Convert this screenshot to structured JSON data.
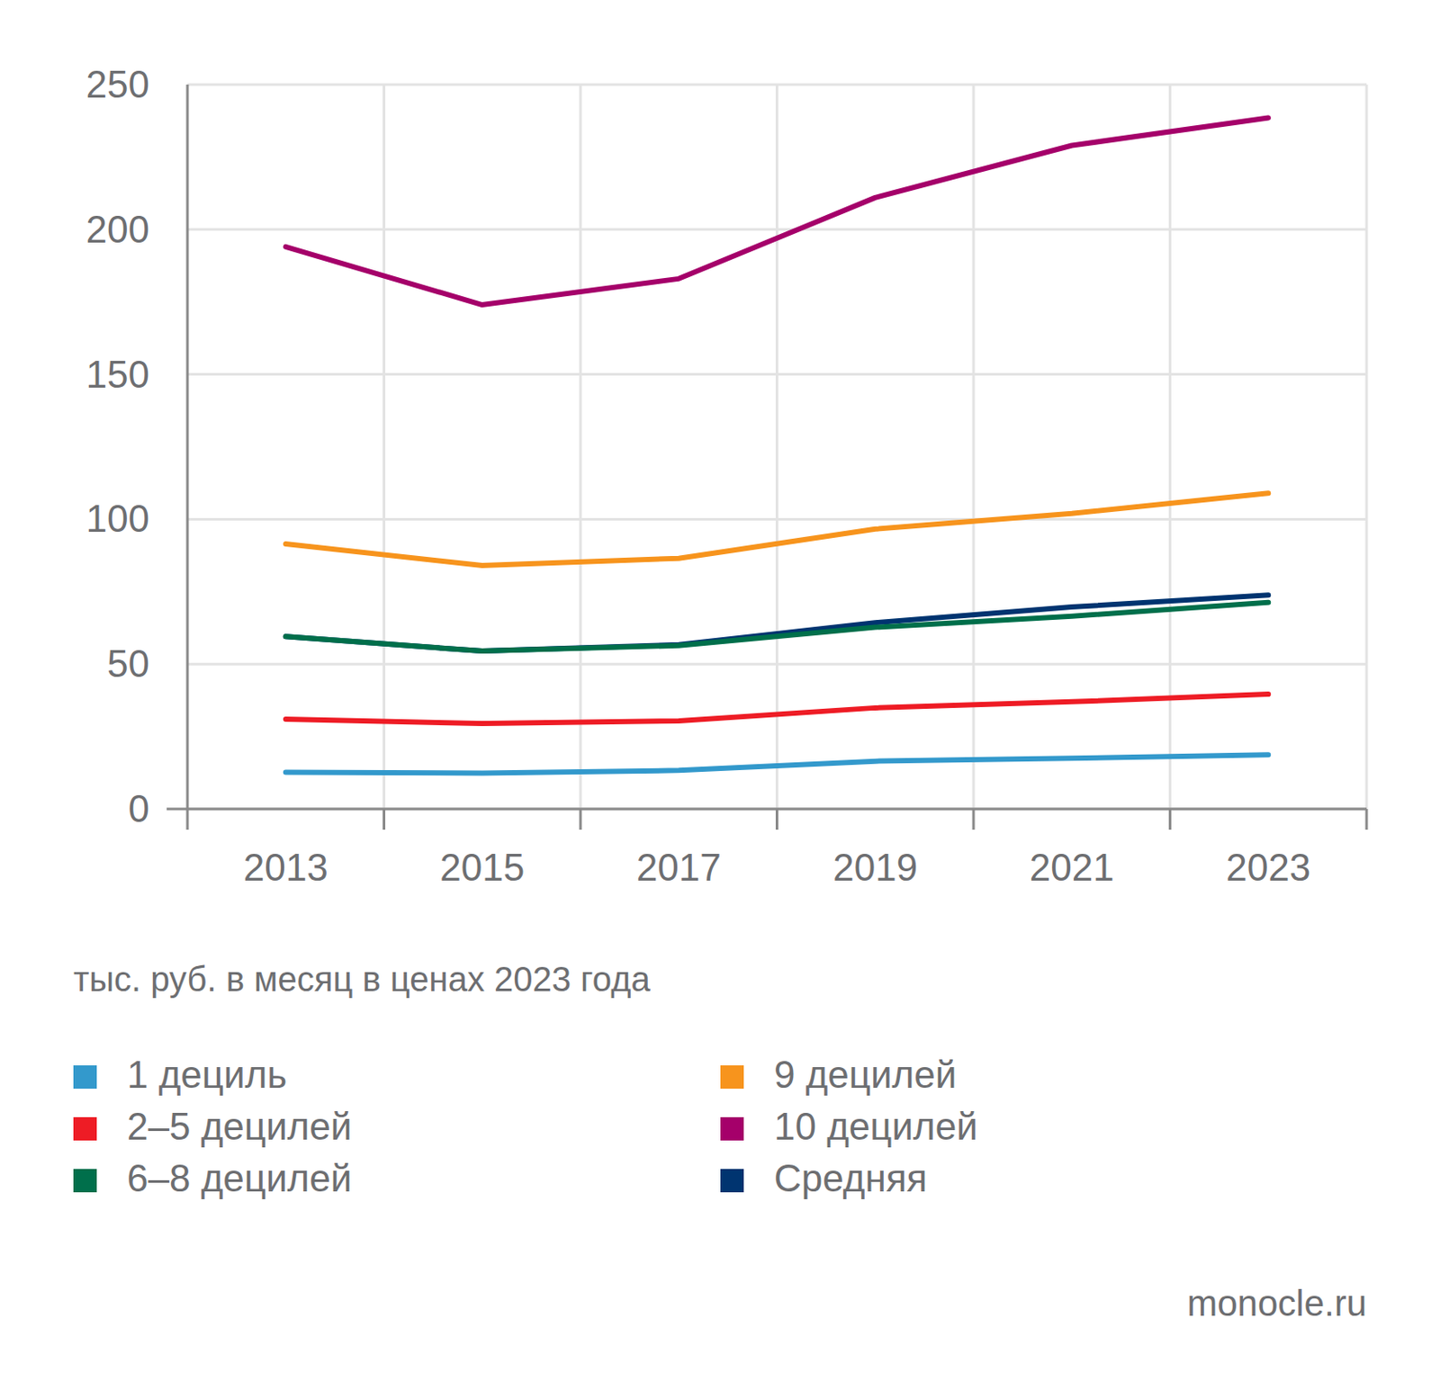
{
  "chart_data": {
    "type": "line",
    "y_label": "тыс. руб. в месяц в ценах 2023 года",
    "annotations": [
      "monocle.ru"
    ],
    "categories": [
      "2013",
      "2015",
      "2017",
      "2019",
      "2021",
      "2023"
    ],
    "ylim": [
      0,
      250
    ],
    "yticks": [
      0,
      50,
      100,
      150,
      200,
      250
    ],
    "grid": true,
    "legend": "bottom",
    "series": [
      {
        "name": "1 дециль",
        "color": "#3399cc",
        "values": [
          12.7,
          12.4,
          13.3,
          16.5,
          17.5,
          18.7
        ]
      },
      {
        "name": "2–5 децилей",
        "color": "#ee1c25",
        "values": [
          31,
          29.5,
          30.4,
          34.9,
          37,
          39.6
        ]
      },
      {
        "name": "6–8 децилей",
        "color": "#006f4b",
        "values": [
          59.5,
          54.5,
          56.4,
          62.7,
          66.5,
          71.3
        ]
      },
      {
        "name": "9 децилей",
        "color": "#f7941d",
        "values": [
          91.5,
          84,
          86.5,
          96.6,
          102,
          109
        ]
      },
      {
        "name": "10 децилей",
        "color": "#a5006a",
        "values": [
          194,
          174,
          183,
          211,
          229,
          238.5
        ]
      },
      {
        "name": "Средняя",
        "color": "#003470",
        "values": [
          59.5,
          54.5,
          56.7,
          64.3,
          69.7,
          73.8
        ]
      }
    ]
  }
}
